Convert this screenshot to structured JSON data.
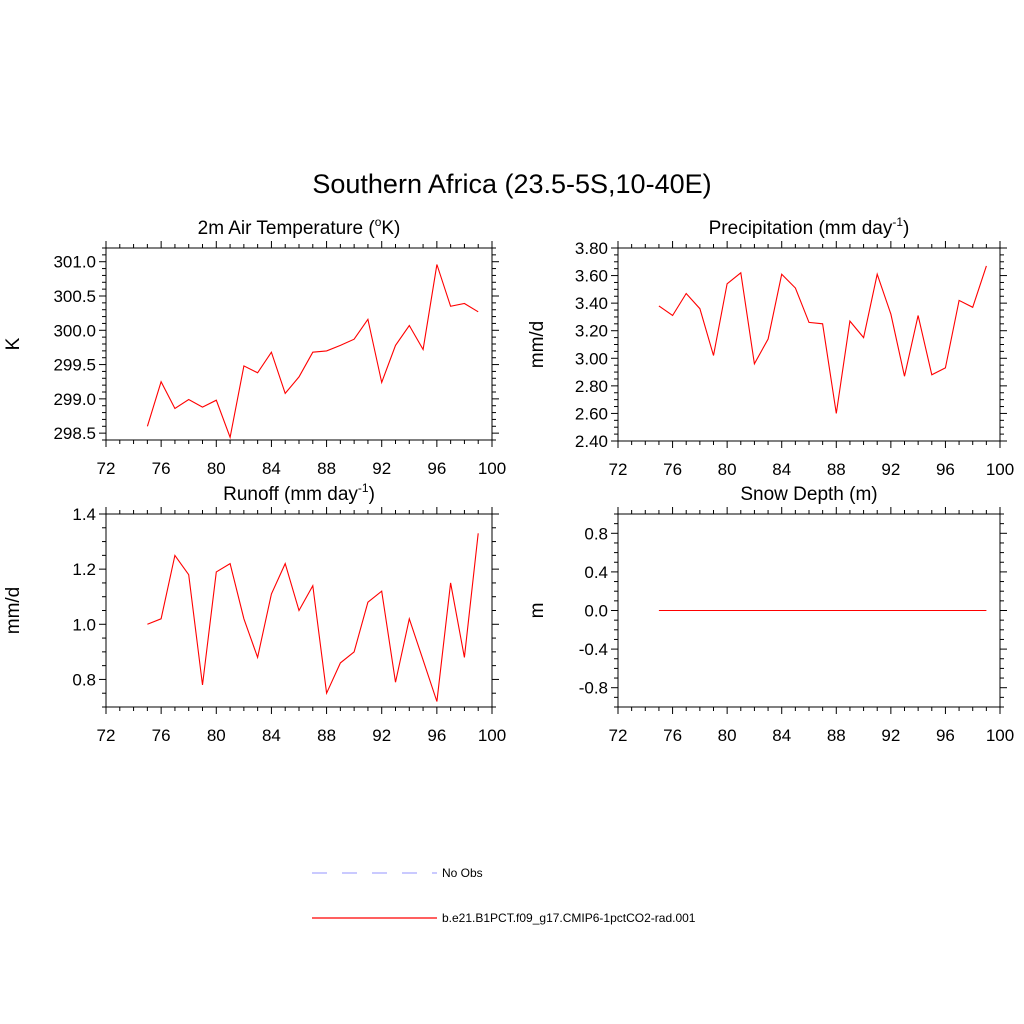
{
  "title": "Southern Africa (23.5-5S,10-40E)",
  "colors": {
    "model": "#ff0000",
    "obs": "#aaaaff",
    "axis": "#000000"
  },
  "legend": {
    "items": [
      {
        "label": "No Obs",
        "style": "dashed",
        "color": "#aaaaff"
      },
      {
        "label": "b.e21.B1PCT.f09_g17.CMIP6-1pctCO2-rad.001",
        "style": "solid",
        "color": "#ff0000"
      }
    ]
  },
  "chart_data": [
    {
      "type": "line",
      "title": "2m Air Temperature (",
      "title_sup": "o",
      "title_end": "K)",
      "ylabel": "K",
      "xlim": [
        72,
        100
      ],
      "ylim": [
        298.4,
        301.2
      ],
      "xticks": [
        72,
        76,
        80,
        84,
        88,
        92,
        96,
        100
      ],
      "yticks": [
        298.5,
        299.0,
        299.5,
        300.0,
        300.5,
        301.0
      ],
      "ytick_labels": [
        "298.5",
        "299.0",
        "299.5",
        "300.0",
        "300.5",
        "301.0"
      ],
      "yminor": 0.1,
      "x": [
        75,
        76,
        77,
        78,
        79,
        80,
        81,
        82,
        83,
        84,
        85,
        86,
        87,
        88,
        89,
        90,
        91,
        92,
        93,
        94,
        95,
        96,
        97,
        98,
        99
      ],
      "series": [
        {
          "values": [
            298.6,
            299.25,
            298.86,
            298.99,
            298.88,
            298.98,
            298.44,
            299.48,
            299.38,
            299.68,
            299.08,
            299.32,
            299.68,
            299.7,
            299.78,
            299.87,
            300.16,
            299.24,
            299.78,
            300.07,
            299.72,
            300.96,
            300.35,
            300.39,
            300.27
          ],
          "color": "#ff0000"
        }
      ]
    },
    {
      "type": "line",
      "title": "Precipitation (mm day",
      "title_sup": "-1",
      "title_end": ")",
      "ylabel": "mm/d",
      "xlim": [
        72,
        100
      ],
      "ylim": [
        2.4,
        3.8
      ],
      "xticks": [
        72,
        76,
        80,
        84,
        88,
        92,
        96,
        100
      ],
      "yticks": [
        2.4,
        2.6,
        2.8,
        3.0,
        3.2,
        3.4,
        3.6,
        3.8
      ],
      "ytick_labels": [
        "2.40",
        "2.60",
        "2.80",
        "3.00",
        "3.20",
        "3.40",
        "3.60",
        "3.80"
      ],
      "yminor": 0.05,
      "x": [
        75,
        76,
        77,
        78,
        79,
        80,
        81,
        82,
        83,
        84,
        85,
        86,
        87,
        88,
        89,
        90,
        91,
        92,
        93,
        94,
        95,
        96,
        97,
        98,
        99
      ],
      "series": [
        {
          "values": [
            3.38,
            3.31,
            3.47,
            3.36,
            3.02,
            3.54,
            3.62,
            2.96,
            3.14,
            3.61,
            3.51,
            3.26,
            3.25,
            2.6,
            3.27,
            3.15,
            3.61,
            3.32,
            2.87,
            3.31,
            2.88,
            2.93,
            3.42,
            3.37,
            3.67
          ],
          "color": "#ff0000"
        }
      ]
    },
    {
      "type": "line",
      "title": "Runoff (mm day",
      "title_sup": "-1",
      "title_end": ")",
      "ylabel": "mm/d",
      "xlim": [
        72,
        100
      ],
      "ylim": [
        0.7,
        1.4
      ],
      "xticks": [
        72,
        76,
        80,
        84,
        88,
        92,
        96,
        100
      ],
      "yticks": [
        0.8,
        1.0,
        1.2,
        1.4
      ],
      "ytick_labels": [
        "0.8",
        "1.0",
        "1.2",
        "1.4"
      ],
      "yminor": 0.05,
      "x": [
        75,
        76,
        77,
        78,
        79,
        80,
        81,
        82,
        83,
        84,
        85,
        86,
        87,
        88,
        89,
        90,
        91,
        92,
        93,
        94,
        95,
        96,
        97,
        98,
        99
      ],
      "series": [
        {
          "values": [
            1.0,
            1.02,
            1.25,
            1.18,
            0.78,
            1.19,
            1.22,
            1.02,
            0.88,
            1.11,
            1.22,
            1.05,
            1.14,
            0.75,
            0.86,
            0.9,
            1.08,
            1.12,
            0.79,
            1.02,
            0.87,
            0.72,
            1.15,
            0.88,
            1.33
          ],
          "color": "#ff0000"
        }
      ]
    },
    {
      "type": "line",
      "title": "Snow Depth (m)",
      "title_sup": "",
      "title_end": "",
      "ylabel": "m",
      "xlim": [
        72,
        100
      ],
      "ylim": [
        -1.0,
        1.0
      ],
      "xticks": [
        72,
        76,
        80,
        84,
        88,
        92,
        96,
        100
      ],
      "yticks": [
        -0.8,
        -0.4,
        0.0,
        0.4,
        0.8
      ],
      "ytick_labels": [
        "-0.8",
        "-0.4",
        "0.0",
        "0.4",
        "0.8"
      ],
      "yminor": 0.1,
      "x": [
        75,
        76,
        77,
        78,
        79,
        80,
        81,
        82,
        83,
        84,
        85,
        86,
        87,
        88,
        89,
        90,
        91,
        92,
        93,
        94,
        95,
        96,
        97,
        98,
        99
      ],
      "series": [
        {
          "values": [
            0,
            0,
            0,
            0,
            0,
            0,
            0,
            0,
            0,
            0,
            0,
            0,
            0,
            0,
            0,
            0,
            0,
            0,
            0,
            0,
            0,
            0,
            0,
            0,
            0
          ],
          "color": "#ff0000"
        }
      ]
    }
  ]
}
